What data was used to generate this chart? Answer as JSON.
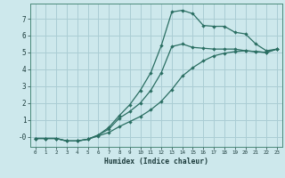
{
  "title": "",
  "xlabel": "Humidex (Indice chaleur)",
  "ylabel": "",
  "background_color": "#cde8ec",
  "grid_color": "#aacdd4",
  "line_color": "#2a6e62",
  "x_ticks": [
    0,
    1,
    2,
    3,
    4,
    5,
    6,
    7,
    8,
    9,
    10,
    11,
    12,
    13,
    14,
    15,
    16,
    17,
    18,
    19,
    20,
    21,
    22,
    23
  ],
  "y_ticks": [
    0,
    1,
    2,
    3,
    4,
    5,
    6,
    7
  ],
  "y_tick_labels": [
    "-0",
    "1",
    "2",
    "3",
    "4",
    "5",
    "6",
    "7"
  ],
  "ylim": [
    -0.6,
    7.9
  ],
  "xlim": [
    -0.5,
    23.5
  ],
  "series2_x": [
    0,
    1,
    2,
    3,
    4,
    5,
    6,
    7,
    8,
    9,
    10,
    11,
    12,
    13,
    14,
    15,
    16,
    17,
    18,
    19,
    20,
    21,
    22,
    23
  ],
  "series2_y": [
    -0.1,
    -0.1,
    -0.1,
    -0.25,
    -0.25,
    -0.15,
    0.1,
    0.55,
    1.25,
    1.9,
    2.75,
    3.8,
    5.4,
    7.4,
    7.5,
    7.3,
    6.6,
    6.55,
    6.55,
    6.2,
    6.1,
    5.5,
    5.1,
    5.2
  ],
  "series1_x": [
    0,
    1,
    2,
    3,
    4,
    5,
    6,
    7,
    8,
    9,
    10,
    11,
    12,
    13,
    14,
    15,
    16,
    17,
    18,
    19,
    20,
    21,
    22,
    23
  ],
  "series1_y": [
    -0.1,
    -0.1,
    -0.1,
    -0.25,
    -0.25,
    -0.15,
    0.1,
    0.45,
    1.1,
    1.5,
    2.0,
    2.75,
    3.8,
    5.35,
    5.5,
    5.3,
    5.25,
    5.2,
    5.2,
    5.2,
    5.1,
    5.05,
    5.0,
    5.2
  ],
  "series3_x": [
    0,
    1,
    2,
    3,
    4,
    5,
    6,
    7,
    8,
    9,
    10,
    11,
    12,
    13,
    14,
    15,
    16,
    17,
    18,
    19,
    20,
    21,
    22,
    23
  ],
  "series3_y": [
    -0.1,
    -0.1,
    -0.1,
    -0.25,
    -0.25,
    -0.15,
    0.05,
    0.25,
    0.6,
    0.9,
    1.2,
    1.6,
    2.1,
    2.8,
    3.6,
    4.1,
    4.5,
    4.8,
    4.95,
    5.05,
    5.1,
    5.05,
    5.0,
    5.2
  ]
}
